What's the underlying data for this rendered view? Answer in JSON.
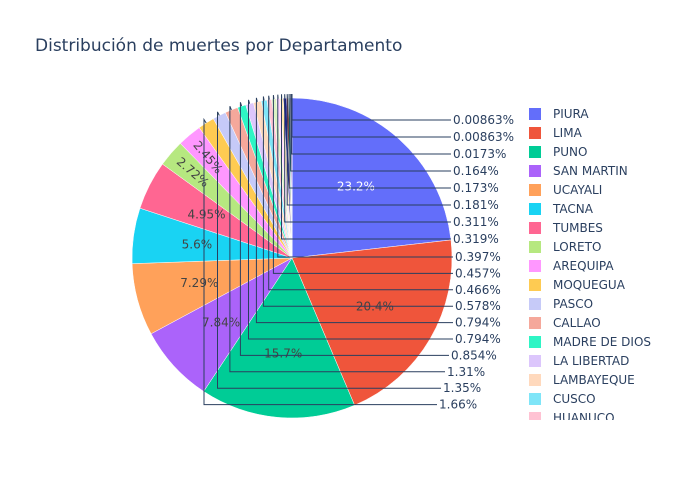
{
  "chart_data": {
    "type": "pie",
    "title": "Distribución de muertes por Departamento",
    "direction": "clockwise",
    "start_angle": "top",
    "slices": [
      {
        "label": "PIURA",
        "percent": 23.2,
        "color": "#636efa",
        "inside_text": "#ffffff"
      },
      {
        "label": "LIMA",
        "percent": 20.4,
        "color": "#EF553B",
        "inside_text": "#444444"
      },
      {
        "label": "PUNO",
        "percent": 15.7,
        "color": "#00cc96",
        "inside_text": "#444444"
      },
      {
        "label": "SAN MARTIN",
        "percent": 7.84,
        "color": "#ab63fa",
        "inside_text": "#444444"
      },
      {
        "label": "UCAYALI",
        "percent": 7.29,
        "color": "#FFA15A",
        "inside_text": "#444444"
      },
      {
        "label": "TACNA",
        "percent": 5.6,
        "color": "#19d3f3",
        "inside_text": "#444444"
      },
      {
        "label": "TUMBES",
        "percent": 4.95,
        "color": "#FF6692",
        "inside_text": "#444444"
      },
      {
        "label": "LORETO",
        "percent": 2.72,
        "color": "#B6E880",
        "inside_text": "#444444"
      },
      {
        "label": "AREQUIPA",
        "percent": 2.45,
        "color": "#FF97FF",
        "inside_text": "#444444"
      },
      {
        "label": "MOQUEGUA",
        "percent": 1.66,
        "color": "#FECB52",
        "inside_text": ""
      },
      {
        "label": "PASCO",
        "percent": 1.35,
        "color": "#c6caf8",
        "inside_text": ""
      },
      {
        "label": "CALLAO",
        "percent": 1.31,
        "color": "#f5a89b",
        "inside_text": ""
      },
      {
        "label": "MADRE DE DIOS",
        "percent": 0.854,
        "color": "#2ef5c5",
        "inside_text": ""
      },
      {
        "label": "LA LIBERTAD",
        "percent": 0.794,
        "color": "#dcc6fc",
        "inside_text": ""
      },
      {
        "label": "LAMBAYEQUE",
        "percent": 0.794,
        "color": "#ffd9bd",
        "inside_text": ""
      },
      {
        "label": "CUSCO",
        "percent": 0.578,
        "color": "#7fe5f8",
        "inside_text": ""
      },
      {
        "label": "HUANUCO",
        "percent": 0.466,
        "color": "#ffc2d3",
        "inside_text": ""
      },
      {
        "label": "",
        "percent": 0.457,
        "color": "#dcf3c4",
        "inside_text": ""
      },
      {
        "label": "",
        "percent": 0.397,
        "color": "#ffd5ff",
        "inside_text": ""
      },
      {
        "label": "",
        "percent": 0.319,
        "color": "#fee6ad",
        "inside_text": ""
      },
      {
        "label": "",
        "percent": 0.311,
        "color": "#1c1c8f",
        "inside_text": ""
      },
      {
        "label": "",
        "percent": 0.181,
        "color": "#a3301c",
        "inside_text": ""
      },
      {
        "label": "",
        "percent": 0.173,
        "color": "#00876a",
        "inside_text": ""
      },
      {
        "label": "",
        "percent": 0.164,
        "color": "#7d3bb8",
        "inside_text": ""
      },
      {
        "label": "",
        "percent": 0.0173,
        "color": "#c46d2e",
        "inside_text": ""
      },
      {
        "label": "",
        "percent": 0.00863,
        "color": "#0f9ab5",
        "inside_text": ""
      },
      {
        "label": "",
        "percent": 0.00863,
        "color": "#c23f6a",
        "inside_text": ""
      }
    ],
    "outside_labels_top": [
      "0.00863%",
      "0.00863%",
      "0.0173%",
      "0.164%",
      "0.173%",
      "0.181%",
      "0.311%",
      "0.319%"
    ],
    "outside_labels_bottom": [
      "0.397%",
      "0.457%",
      "0.466%",
      "0.578%",
      "0.794%",
      "0.794%",
      "0.854%",
      "1.31%",
      "1.35%",
      "1.66%"
    ],
    "legend_placement": "right",
    "legend_visible_count": 17
  }
}
